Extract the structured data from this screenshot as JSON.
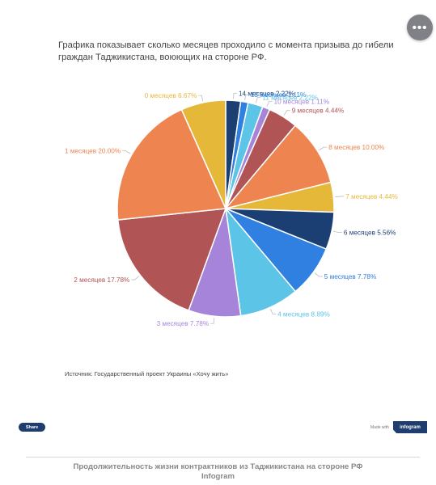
{
  "page": {
    "more_button": "•••",
    "source_text": "Источник: Государственный проект Украины «Хочу жить»",
    "share_label": "Share",
    "made_with": "Made with",
    "infogram_badge": "infogram",
    "caption_line1": "Продолжительность жизни контрактников из Таджикистана на стороне РФ",
    "caption_line2": "Infogram"
  },
  "chart_data": {
    "type": "pie",
    "title": "Графика показывает сколько месяцев проходило с момента призыва до гибели граждан Таджикистана, воюющих на стороне РФ.",
    "start_angle_deg": 0,
    "direction": "clockwise",
    "slices": [
      {
        "label": "14 месяцев 2.22%",
        "value": 2.22,
        "color": "#1b3f73"
      },
      {
        "label": "13 месяцев 1.11%",
        "value": 1.11,
        "color": "#2f80e0"
      },
      {
        "label": "11 месяцев 2.22%",
        "value": 2.22,
        "color": "#5cc4e6"
      },
      {
        "label": "10 месяцев 1.11%",
        "value": 1.11,
        "color": "#a684da"
      },
      {
        "label": "9 месяцев 4.44%",
        "value": 4.44,
        "color": "#b15455"
      },
      {
        "label": "8 месяцев 10.00%",
        "value": 10.0,
        "color": "#ee8550"
      },
      {
        "label": "7 месяцев 4.44%",
        "value": 4.44,
        "color": "#e6b83a"
      },
      {
        "label": "6 месяцев 5.56%",
        "value": 5.56,
        "color": "#1b3f73"
      },
      {
        "label": "5 месяцев 7.78%",
        "value": 7.78,
        "color": "#2f80e0"
      },
      {
        "label": "4 месяцев 8.89%",
        "value": 8.89,
        "color": "#5cc4e6"
      },
      {
        "label": "3 месяцев 7.78%",
        "value": 7.78,
        "color": "#a684da"
      },
      {
        "label": "2 месяцев 17.78%",
        "value": 17.78,
        "color": "#b15455"
      },
      {
        "label": "1 месяцев 20.00%",
        "value": 20.0,
        "color": "#ee8550"
      },
      {
        "label": "0 месяцев 6.67%",
        "value": 6.67,
        "color": "#e6b83a"
      }
    ]
  }
}
